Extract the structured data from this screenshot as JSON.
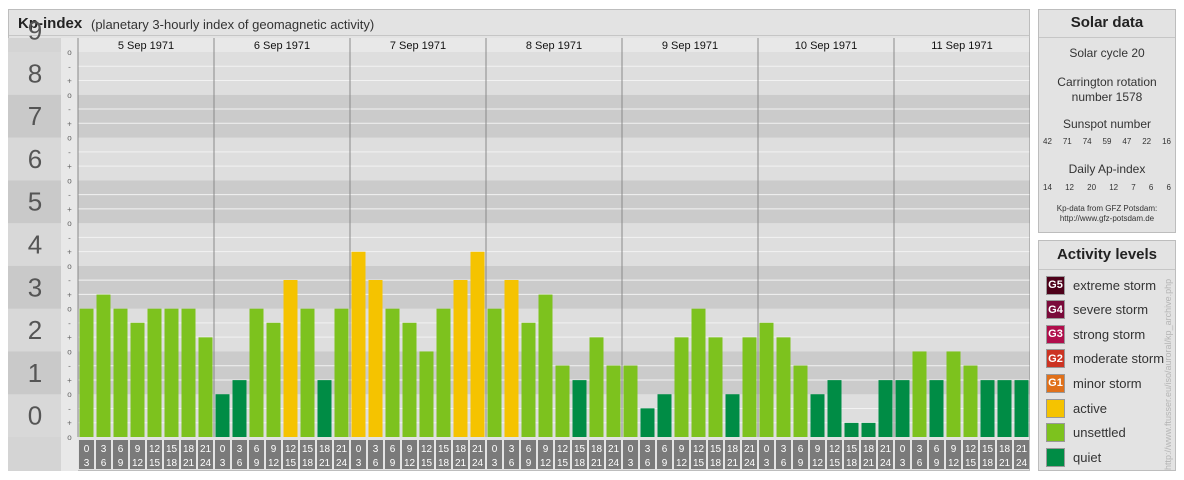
{
  "header": {
    "title": "Kp-index",
    "subtitle": "(planetary 3-hourly index of geomagnetic activity)"
  },
  "solar": {
    "title": "Solar data",
    "cycle": "Solar cycle 20",
    "carrington_line1": "Carrington rotation",
    "carrington_line2": "number 1578",
    "sunspot_title": "Sunspot number",
    "sunspot_values": [
      "42",
      "71",
      "74",
      "59",
      "47",
      "22",
      "16"
    ],
    "ap_title": "Daily Ap-index",
    "ap_values": [
      "14",
      "12",
      "20",
      "12",
      "7",
      "6",
      "6"
    ],
    "source_line1": "Kp-data from GFZ Potsdam:",
    "source_line2": "http://www.gfz-potsdam.de"
  },
  "legend": {
    "title": "Activity levels",
    "items": [
      {
        "code": "G5",
        "label": "extreme storm",
        "color": "#4d0019"
      },
      {
        "code": "G4",
        "label": "severe storm",
        "color": "#7a0a3a"
      },
      {
        "code": "G3",
        "label": "strong storm",
        "color": "#b00d4b"
      },
      {
        "code": "G2",
        "label": "moderate storm",
        "color": "#cc3322"
      },
      {
        "code": "G1",
        "label": "minor storm",
        "color": "#e0701a"
      },
      {
        "code": "",
        "label": "active",
        "color": "#f5c300"
      },
      {
        "code": "",
        "label": "unsettled",
        "color": "#7dc21e"
      },
      {
        "code": "",
        "label": "quiet",
        "color": "#008c45"
      }
    ]
  },
  "credit": "http://www.ftusser.eu/iso/auroral/kp_archive.php",
  "chart_data": {
    "type": "bar",
    "title": "Kp-index",
    "ylim": [
      0,
      9
    ],
    "y_tick_labels": [
      "0",
      "1",
      "2",
      "3",
      "4",
      "5",
      "6",
      "7",
      "8",
      "9"
    ],
    "minor_tick_labels": [
      "o",
      "+",
      "-"
    ],
    "days": [
      "5 Sep 1971",
      "6 Sep 1971",
      "7 Sep 1971",
      "8 Sep 1971",
      "9 Sep 1971",
      "10 Sep 1971",
      "11 Sep 1971"
    ],
    "hour_top_labels": [
      "0",
      "3",
      "6",
      "9",
      "12",
      "15",
      "18",
      "21"
    ],
    "hour_bottom_labels": [
      "3",
      "6",
      "9",
      "12",
      "15",
      "18",
      "21",
      "24"
    ],
    "values": [
      [
        3.0,
        3.33,
        3.0,
        2.67,
        3.0,
        3.0,
        3.0,
        2.33
      ],
      [
        1.0,
        1.33,
        3.0,
        2.67,
        3.67,
        3.0,
        1.33,
        3.0
      ],
      [
        4.33,
        3.67,
        3.0,
        2.67,
        2.0,
        3.0,
        3.67,
        4.33
      ],
      [
        3.0,
        3.67,
        2.67,
        3.33,
        1.67,
        1.33,
        2.33,
        1.67
      ],
      [
        1.67,
        0.67,
        1.0,
        2.33,
        3.0,
        2.33,
        1.0,
        2.33
      ],
      [
        2.67,
        2.33,
        1.67,
        1.0,
        1.33,
        0.33,
        0.33,
        1.33
      ],
      [
        1.33,
        2.0,
        1.33,
        2.0,
        1.67,
        1.33,
        1.33,
        1.33
      ]
    ],
    "level_colors": {
      "quiet": "#008c45",
      "unsettled": "#7dc21e",
      "active": "#f5c300"
    },
    "grid": true
  }
}
